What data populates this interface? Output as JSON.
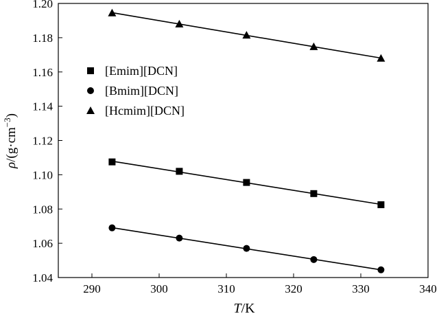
{
  "chart_data": {
    "type": "scatter",
    "title": "",
    "xlabel": "T/K",
    "xlabel_italic": "T",
    "xlabel_rest": "/K",
    "ylabel_rho": "ρ",
    "ylabel_mid": "/(g·cm",
    "ylabel_sup": "−3",
    "ylabel_end": ")",
    "xlim": [
      285,
      340
    ],
    "ylim": [
      1.04,
      1.2
    ],
    "xticks": [
      290,
      300,
      310,
      320,
      330,
      340
    ],
    "yticks": [
      1.04,
      1.06,
      1.08,
      1.1,
      1.12,
      1.14,
      1.16,
      1.18,
      1.2
    ],
    "ytick_labels": [
      "1.04",
      "1.06",
      "1.08",
      "1.10",
      "1.12",
      "1.14",
      "1.16",
      "1.18",
      "1.20"
    ],
    "legend_position": "upper-left",
    "grid": false,
    "fit_lines": true,
    "series": [
      {
        "name": "[Emim][DCN]",
        "marker": "square",
        "x": [
          293,
          303,
          313,
          323,
          333
        ],
        "y": [
          1.1075,
          1.102,
          1.0955,
          1.089,
          1.0825
        ]
      },
      {
        "name": "[Bmim][DCN]",
        "marker": "circle",
        "x": [
          293,
          303,
          313,
          323,
          333
        ],
        "y": [
          1.069,
          1.063,
          1.057,
          1.0505,
          1.0445
        ]
      },
      {
        "name": "[Hcmim][DCN]",
        "marker": "triangle",
        "x": [
          293,
          303,
          313,
          323,
          333
        ],
        "y": [
          1.1945,
          1.188,
          1.1815,
          1.1748,
          1.168
        ]
      }
    ]
  }
}
